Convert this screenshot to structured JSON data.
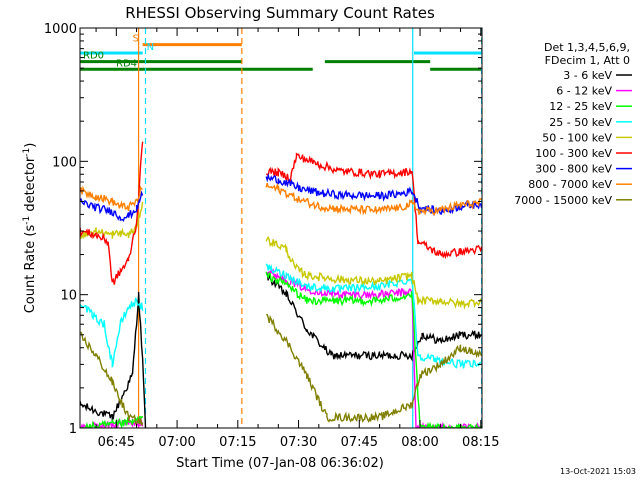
{
  "chart_data": {
    "type": "line",
    "title": "RHESSI Observing Summary Count Rates",
    "xlabel": "Start Time (07-Jan-08 06:36:02)",
    "ylabel_main": "Count Rate (s",
    "ylabel_sup1": "-1",
    "ylabel_mid": " detector",
    "ylabel_sup2": "-1",
    "ylabel_end": ")",
    "yscale": "log",
    "ylim": [
      1,
      1000
    ],
    "y_tick_labels": [
      "1",
      "10",
      "100",
      "1000"
    ],
    "xlim_minutes": [
      36.03,
      135.3
    ],
    "x_ticks": [
      {
        "label": "06:45",
        "min": 45
      },
      {
        "label": "07:00",
        "min": 60
      },
      {
        "label": "07:15",
        "min": 75
      },
      {
        "label": "07:30",
        "min": 90
      },
      {
        "label": "07:45",
        "min": 105
      },
      {
        "label": "08:00",
        "min": 120
      },
      {
        "label": "08:15",
        "min": 135
      }
    ],
    "legend_header": [
      "Det 1,3,4,5,6,9,",
      "FDecim 1, Att 0"
    ],
    "timestamp": "13-Oct-2021 15:03",
    "flags": [
      {
        "label": "S",
        "color": "#ff8000",
        "y": 750,
        "segments": [
          [
            51.5,
            76
          ]
        ]
      },
      {
        "label": "N",
        "color": "#00e0ff",
        "y": 650,
        "segments": [
          [
            36.03,
            51.5
          ],
          [
            118.5,
            135.3
          ]
        ]
      },
      {
        "label": "RD0",
        "color": "#008000",
        "y": 560,
        "segments": [
          [
            36.03,
            76
          ],
          [
            96.5,
            122.5
          ]
        ]
      },
      {
        "label": "RD4",
        "color": "#008000",
        "y": 490,
        "segments": [
          [
            36.03,
            76
          ],
          [
            76,
            93.5
          ],
          [
            122.5,
            135.3
          ]
        ]
      }
    ],
    "vlines": [
      {
        "min": 50.5,
        "color": "#ff8000",
        "style": "solid"
      },
      {
        "min": 52.2,
        "color": "#00e0ff",
        "style": "dashed"
      },
      {
        "min": 76.0,
        "color": "#ff8000",
        "style": "dashed"
      },
      {
        "min": 118.2,
        "color": "#00e0ff",
        "style": "solid"
      },
      {
        "min": 135.2,
        "color": "#00e0ff",
        "style": "dashed"
      }
    ],
    "gap_minutes": [
      52.2,
      82.0
    ],
    "series": [
      {
        "name": "3 - 6 keV",
        "color": "#000000",
        "values": [
          [
            36.03,
            1.5
          ],
          [
            44,
            1.2
          ],
          [
            49,
            2.5
          ],
          [
            50.5,
            10
          ],
          [
            51.5,
            3.2
          ],
          [
            52.2,
            1.0
          ],
          [
            82,
            14
          ],
          [
            87,
            10
          ],
          [
            92,
            5.5
          ],
          [
            98,
            3.5
          ],
          [
            110,
            3.5
          ],
          [
            118,
            3.5
          ],
          [
            120.5,
            5
          ],
          [
            125,
            4.5
          ],
          [
            130,
            5
          ],
          [
            135.2,
            5
          ]
        ]
      },
      {
        "name": "6 - 12 keV",
        "color": "#ff00ff",
        "values": [
          [
            36.03,
            1.0
          ],
          [
            49,
            1.1
          ],
          [
            51.5,
            1.1
          ],
          [
            82,
            15
          ],
          [
            87,
            13
          ],
          [
            92,
            11
          ],
          [
            100,
            10
          ],
          [
            110,
            10
          ],
          [
            118,
            10.5
          ],
          [
            119,
            1.0
          ],
          [
            135.2,
            1.0
          ]
        ]
      },
      {
        "name": "12 - 25 keV",
        "color": "#00ff00",
        "values": [
          [
            36.03,
            1.0
          ],
          [
            49,
            1.1
          ],
          [
            51.5,
            1.2
          ],
          [
            82,
            14
          ],
          [
            87,
            12
          ],
          [
            92,
            9
          ],
          [
            100,
            9
          ],
          [
            110,
            9
          ],
          [
            118,
            10
          ],
          [
            120,
            1.0
          ],
          [
            135.2,
            1.0
          ]
        ]
      },
      {
        "name": "25 - 50 keV",
        "color": "#00ffff",
        "values": [
          [
            36.03,
            9
          ],
          [
            39,
            7
          ],
          [
            42,
            6
          ],
          [
            44,
            3
          ],
          [
            46,
            6
          ],
          [
            48,
            8
          ],
          [
            50,
            9
          ],
          [
            51.5,
            8
          ],
          [
            82,
            16
          ],
          [
            87,
            14
          ],
          [
            92,
            11.5
          ],
          [
            100,
            11
          ],
          [
            110,
            11.5
          ],
          [
            118,
            13
          ],
          [
            119.5,
            3.5
          ],
          [
            125,
            3.2
          ],
          [
            130,
            3
          ],
          [
            135.2,
            3
          ]
        ]
      },
      {
        "name": "50 - 100 keV",
        "color": "#c8c800",
        "values": [
          [
            36.03,
            28
          ],
          [
            40,
            30
          ],
          [
            44,
            28
          ],
          [
            46,
            29
          ],
          [
            48,
            28
          ],
          [
            50,
            32
          ],
          [
            51.5,
            50
          ],
          [
            82,
            26
          ],
          [
            87,
            22
          ],
          [
            89,
            16
          ],
          [
            92,
            14
          ],
          [
            100,
            13
          ],
          [
            110,
            12.5
          ],
          [
            118,
            14
          ],
          [
            119.5,
            9
          ],
          [
            125,
            9
          ],
          [
            130,
            8.5
          ],
          [
            135.2,
            9
          ]
        ]
      },
      {
        "name": "100 - 300 keV",
        "color": "#ff0000",
        "values": [
          [
            36.03,
            30
          ],
          [
            40,
            28
          ],
          [
            43,
            25
          ],
          [
            44,
            12
          ],
          [
            46,
            15
          ],
          [
            48,
            18
          ],
          [
            50,
            35
          ],
          [
            51.5,
            140
          ],
          [
            82,
            84
          ],
          [
            85,
            82
          ],
          [
            88,
            75
          ],
          [
            89.5,
            110
          ],
          [
            95,
            95
          ],
          [
            100,
            85
          ],
          [
            110,
            80
          ],
          [
            115,
            82
          ],
          [
            118,
            85
          ],
          [
            119.5,
            25
          ],
          [
            125,
            20
          ],
          [
            130,
            21
          ],
          [
            135.2,
            22
          ]
        ]
      },
      {
        "name": "300 - 800 keV",
        "color": "#0000ff",
        "values": [
          [
            36.03,
            50
          ],
          [
            40,
            45
          ],
          [
            44,
            42
          ],
          [
            46,
            38
          ],
          [
            48,
            39
          ],
          [
            50,
            44
          ],
          [
            51.5,
            58
          ],
          [
            82,
            75
          ],
          [
            85,
            73
          ],
          [
            90,
            63
          ],
          [
            95,
            58
          ],
          [
            100,
            56
          ],
          [
            110,
            55
          ],
          [
            115,
            57
          ],
          [
            118,
            60
          ],
          [
            120,
            45
          ],
          [
            125,
            42
          ],
          [
            130,
            46
          ],
          [
            135.2,
            48
          ]
        ]
      },
      {
        "name": "800 - 7000 keV",
        "color": "#ff8000",
        "values": [
          [
            36.03,
            60
          ],
          [
            40,
            55
          ],
          [
            44,
            50
          ],
          [
            46,
            46
          ],
          [
            48,
            45
          ],
          [
            50,
            50
          ],
          [
            51.5,
            65
          ],
          [
            82,
            65
          ],
          [
            85,
            62
          ],
          [
            90,
            52
          ],
          [
            95,
            46
          ],
          [
            100,
            44
          ],
          [
            110,
            43
          ],
          [
            115,
            45
          ],
          [
            118,
            48
          ],
          [
            120,
            42
          ],
          [
            125,
            43
          ],
          [
            130,
            47
          ],
          [
            135.2,
            49
          ]
        ]
      },
      {
        "name": "7000 - 15000 keV",
        "color": "#808000",
        "values": [
          [
            36.03,
            5
          ],
          [
            40,
            3.5
          ],
          [
            44,
            2.2
          ],
          [
            48,
            1.2
          ],
          [
            51.5,
            1.1
          ],
          [
            82,
            7
          ],
          [
            87,
            4.5
          ],
          [
            92,
            2.5
          ],
          [
            97,
            1.2
          ],
          [
            110,
            1.2
          ],
          [
            118,
            1.5
          ],
          [
            120,
            2.5
          ],
          [
            125,
            3
          ],
          [
            130,
            4
          ],
          [
            135.2,
            3.5
          ]
        ]
      }
    ]
  }
}
